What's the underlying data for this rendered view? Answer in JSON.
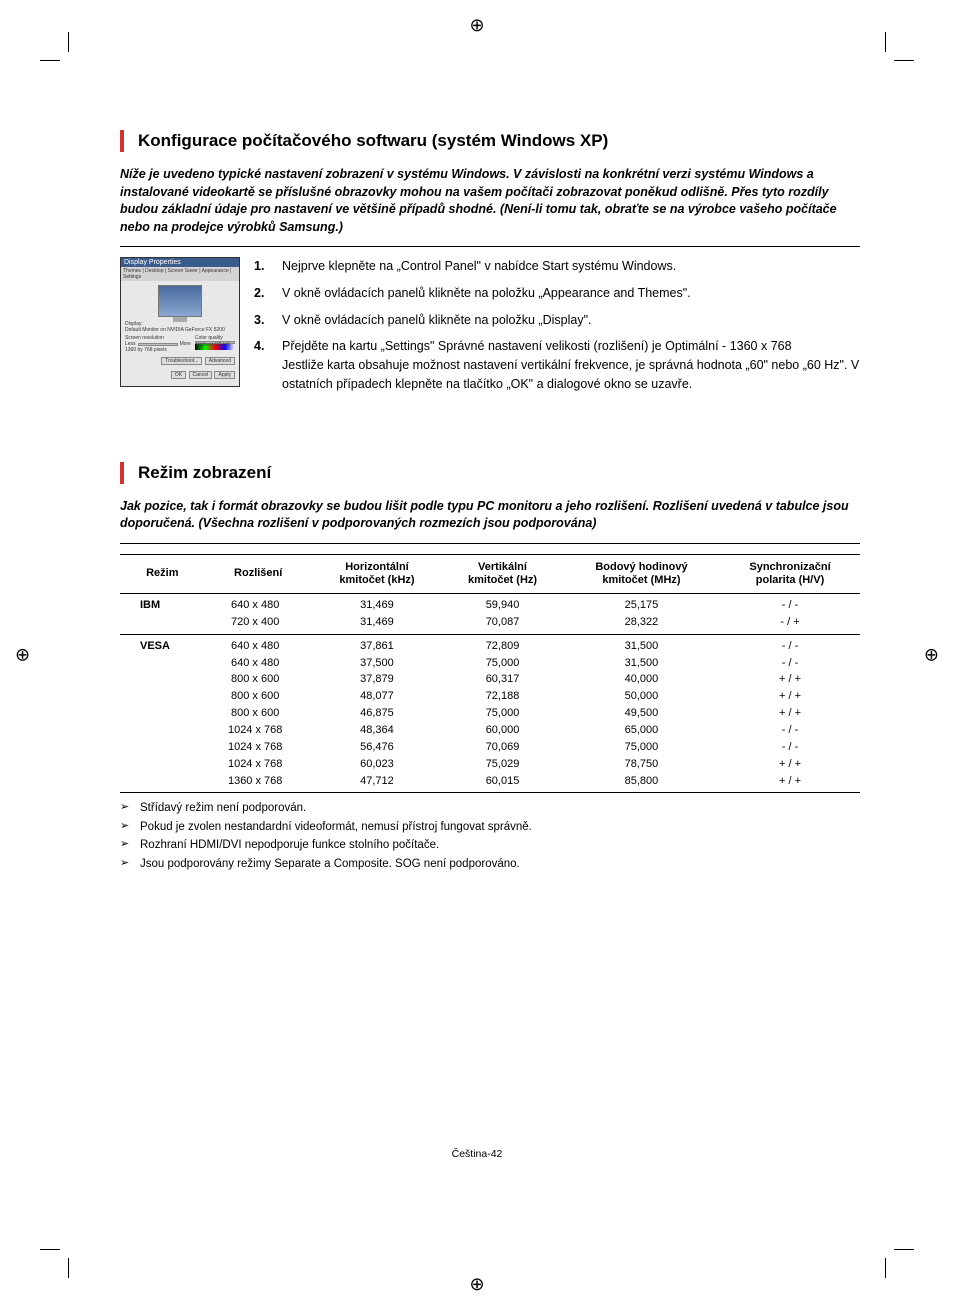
{
  "reg_glyph": "⊕",
  "section1": {
    "heading": "Konfigurace počítačového softwaru (systém Windows XP)",
    "intro": "Níže je uvedeno typické nastavení zobrazení v systému Windows. V závislosti na konkrétní verzi systému Windows a instalované videokartě se příslušné obrazovky mohou na vašem počítači zobrazovat poněkud odlišně. Přes tyto rozdíly budou základní údaje pro nastavení ve většině případů shodné. (Není-li tomu tak, obraťte se na výrobce vašeho počítače nebo na prodejce výrobků Samsung.)",
    "steps": [
      {
        "n": "1.",
        "t": "Nejprve klepněte na „Control Panel\" v nabídce Start systému Windows."
      },
      {
        "n": "2.",
        "t": "V okně ovládacích panelů klikněte na položku „Appearance and Themes\"."
      },
      {
        "n": "3.",
        "t": "V okně ovládacích panelů klikněte na položku „Display\"."
      },
      {
        "n": "4.",
        "t": "Přejděte na kartu „Settings\" Správné nastavení velikosti (rozlišení) je Optimální - 1360 x 768\nJestliže karta obsahuje možnost nastavení vertikální frekvence, je správná hodnota „60\" nebo „60 Hz\". V ostatních případech klepněte na tlačítko „OK\" a dialogové okno se uzavře."
      }
    ],
    "fig": {
      "title": "Display Properties",
      "tabs": "Themes | Desktop | Screen Saver | Appearance | Settings",
      "display_label": "Display:",
      "display_value": "Default Monitor on NVIDIA GeForce FX 5200",
      "res_label": "Screen resolution",
      "res_less": "Less",
      "res_more": "More",
      "res_val": "1360 by 768 pixels",
      "color_label": "Color quality",
      "color_val": "Highest (32 bit)",
      "btn_trouble": "Troubleshoot...",
      "btn_adv": "Advanced",
      "btn_ok": "OK",
      "btn_cancel": "Cancel",
      "btn_apply": "Apply"
    }
  },
  "section2": {
    "heading": "Režim zobrazení",
    "intro": "Jak pozice, tak i formát obrazovky se budou lišit podle typu PC monitoru a jeho rozlišení. Rozlišení uvedená v tabulce jsou doporučená. (Všechna rozlišení v podporovaných rozmezích jsou podporována)",
    "table": {
      "headers": [
        "Režim",
        "Rozlišení",
        "Horizontální kmitočet (kHz)",
        "Vertikální kmitočet (Hz)",
        "Bodový hodinový kmitočet (MHz)",
        "Synchronizační polarita (H/V)"
      ],
      "groups": [
        {
          "name": "IBM",
          "rows": [
            [
              "640 x 480",
              "31,469",
              "59,940",
              "25,175",
              "- / -"
            ],
            [
              "720 x 400",
              "31,469",
              "70,087",
              "28,322",
              "- / +"
            ]
          ]
        },
        {
          "name": "VESA",
          "rows": [
            [
              "640 x 480",
              "37,861",
              "72,809",
              "31,500",
              "- / -"
            ],
            [
              "640 x 480",
              "37,500",
              "75,000",
              "31,500",
              "- / -"
            ],
            [
              "800 x 600",
              "37,879",
              "60,317",
              "40,000",
              "+ / +"
            ],
            [
              "800 x 600",
              "48,077",
              "72,188",
              "50,000",
              "+ / +"
            ],
            [
              "800 x 600",
              "46,875",
              "75,000",
              "49,500",
              "+ / +"
            ],
            [
              "1024 x 768",
              "48,364",
              "60,000",
              "65,000",
              "- / -"
            ],
            [
              "1024 x 768",
              "56,476",
              "70,069",
              "75,000",
              "- / -"
            ],
            [
              "1024 x 768",
              "60,023",
              "75,029",
              "78,750",
              "+ / +"
            ],
            [
              "1360 x 768",
              "47,712",
              "60,015",
              "85,800",
              "+ / +"
            ]
          ]
        }
      ]
    },
    "notes": [
      "Střídavý režim není podporován.",
      "Pokud je zvolen nestandardní videoformát, nemusí přístroj fungovat správně.",
      "Rozhraní HDMI/DVI nepodporuje funkce stolního počítače.",
      "Jsou podporovány režimy Separate a Composite. SOG není podporováno."
    ]
  },
  "footer": "Čeština-42",
  "colors": {
    "accent": "#d3332a",
    "text": "#000000"
  }
}
